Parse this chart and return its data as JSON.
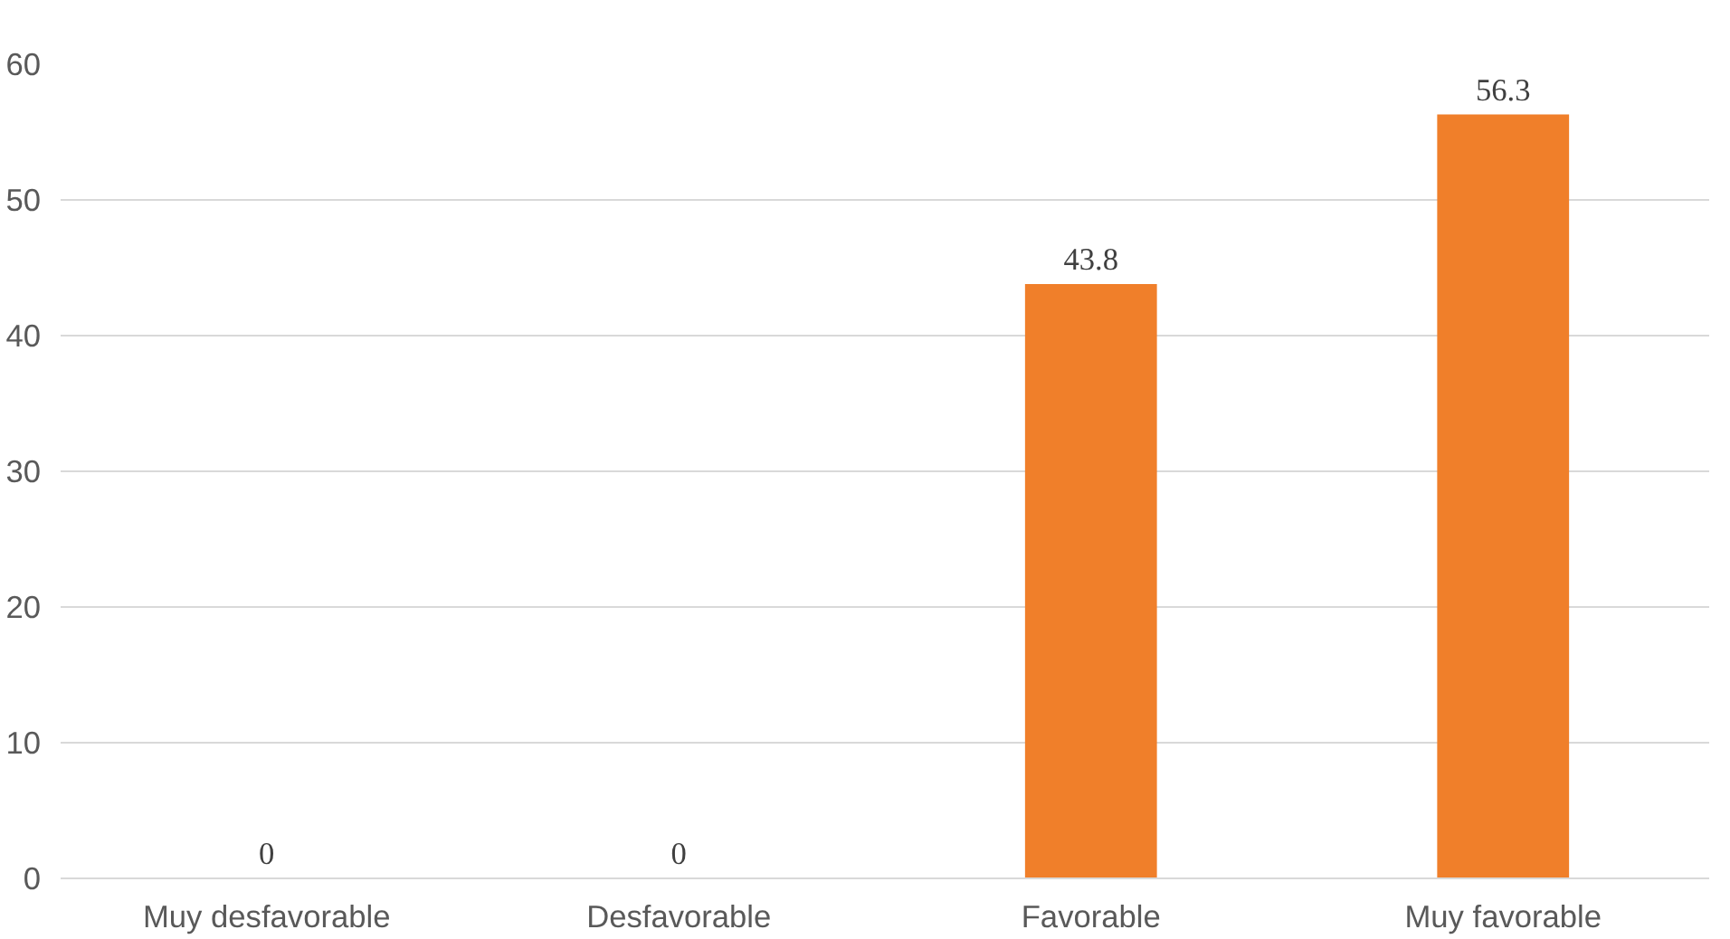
{
  "chart_data": {
    "type": "bar",
    "categories": [
      "Muy desfavorable",
      "Desfavorable",
      "Favorable",
      "Muy favorable"
    ],
    "values": [
      0,
      0,
      43.8,
      56.3
    ],
    "color": "#f07f2a",
    "ylim": [
      0,
      60
    ],
    "yticks": [
      0,
      10,
      20,
      30,
      40,
      50,
      60
    ],
    "grid": "y",
    "data_labels": true
  }
}
